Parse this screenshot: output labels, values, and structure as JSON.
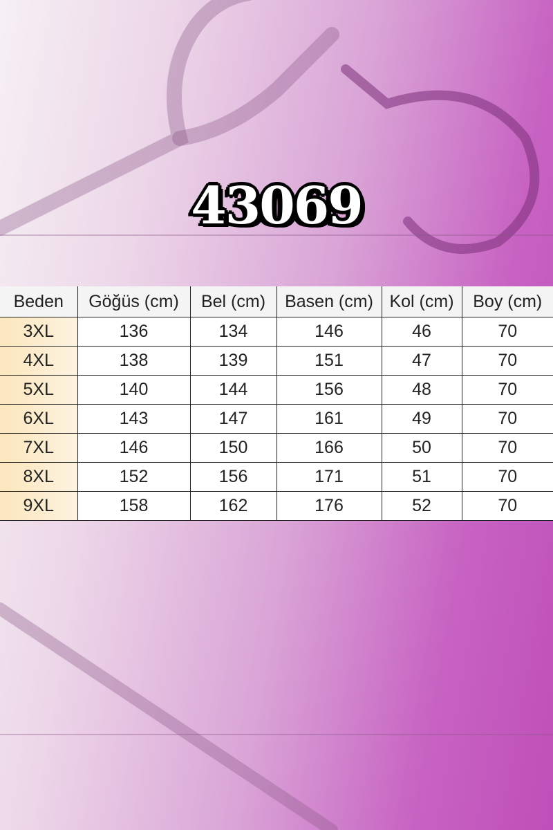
{
  "product_code": "43069",
  "table": {
    "headers": [
      "Beden",
      "Göğüs (cm)",
      "Bel (cm)",
      "Basen (cm)",
      "Kol (cm)",
      "Boy (cm)"
    ],
    "rows": [
      [
        "3XL",
        "136",
        "134",
        "146",
        "46",
        "70"
      ],
      [
        "4XL",
        "138",
        "139",
        "151",
        "47",
        "70"
      ],
      [
        "5XL",
        "140",
        "144",
        "156",
        "48",
        "70"
      ],
      [
        "6XL",
        "143",
        "147",
        "161",
        "49",
        "70"
      ],
      [
        "7XL",
        "146",
        "150",
        "166",
        "50",
        "70"
      ],
      [
        "8XL",
        "152",
        "156",
        "171",
        "51",
        "70"
      ],
      [
        "9XL",
        "158",
        "162",
        "176",
        "52",
        "70"
      ]
    ]
  },
  "colors": {
    "background_accent": "#bf4fb9",
    "size_cell": "#fbe6bd",
    "header": "#f4f4f4"
  }
}
